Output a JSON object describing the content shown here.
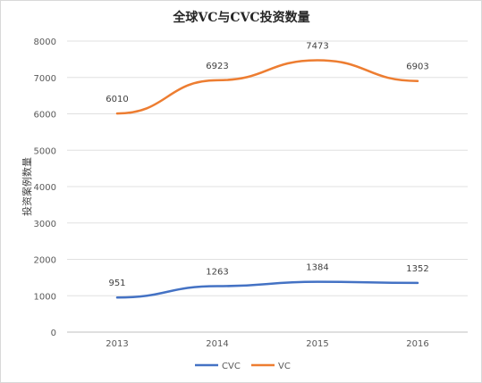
{
  "chart_data": {
    "type": "line",
    "title": "全球VC与CVC投资数量",
    "ylabel": "投资案例数量",
    "xlabel": "",
    "categories": [
      "2013",
      "2014",
      "2015",
      "2016"
    ],
    "ylim": [
      0,
      8000
    ],
    "yticks": [
      "0",
      "1000",
      "2000",
      "3000",
      "4000",
      "5000",
      "6000",
      "7000",
      "8000"
    ],
    "grid": true,
    "legend_position": "bottom",
    "series": [
      {
        "name": "CVC",
        "color": "#4472C4",
        "values": [
          951,
          1263,
          1384,
          1352
        ],
        "labels": [
          "951",
          "1263",
          "1384",
          "1352"
        ]
      },
      {
        "name": "VC",
        "color": "#ED7D31",
        "values": [
          6010,
          6923,
          7473,
          6903
        ],
        "labels": [
          "6010",
          "6923",
          "7473",
          "6903"
        ]
      }
    ]
  }
}
